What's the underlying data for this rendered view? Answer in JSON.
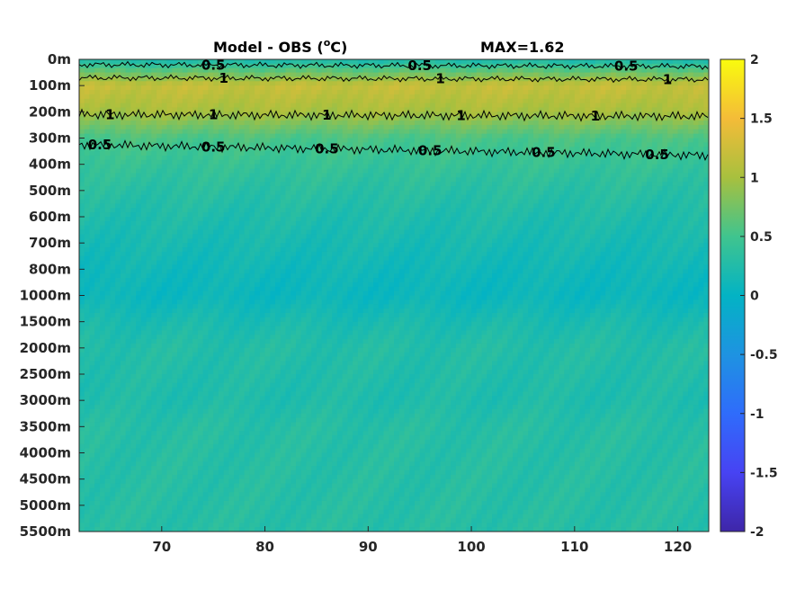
{
  "chart_data": {
    "type": "heatmap",
    "title": "Model - OBS (",
    "title_unit_sup": "o",
    "title_unit": "C)",
    "max_label": "MAX=1.62",
    "xlim": [
      62,
      123
    ],
    "xticks": [
      70,
      80,
      90,
      100,
      110,
      120
    ],
    "depth_labels": [
      "0m",
      "100m",
      "200m",
      "300m",
      "400m",
      "500m",
      "600m",
      "700m",
      "800m",
      "1000m",
      "1500m",
      "2000m",
      "2500m",
      "3000m",
      "3500m",
      "4000m",
      "4500m",
      "5000m",
      "5500m"
    ],
    "colorbar": {
      "clim": [
        -2,
        2
      ],
      "ticks": [
        "2",
        "1.5",
        "1",
        "0.5",
        "0",
        "-0.5",
        "-1",
        "-1.5",
        "-2"
      ],
      "colormap": "parula"
    },
    "profile": [
      {
        "level": "0m",
        "value": 0.2
      },
      {
        "level": "100m",
        "value": 1.2
      },
      {
        "level": "200m",
        "value": 1.0
      },
      {
        "level": "300m",
        "value": 0.55
      },
      {
        "level": "400m",
        "value": 0.42
      },
      {
        "level": "500m",
        "value": 0.32
      },
      {
        "level": "600m",
        "value": 0.24
      },
      {
        "level": "700m",
        "value": 0.18
      },
      {
        "level": "800m",
        "value": 0.12
      },
      {
        "level": "1000m",
        "value": 0.08
      },
      {
        "level": "1500m",
        "value": 0.2
      },
      {
        "level": "2000m",
        "value": 0.28
      },
      {
        "level": "2500m",
        "value": 0.26
      },
      {
        "level": "3000m",
        "value": 0.24
      },
      {
        "level": "3500m",
        "value": 0.3
      },
      {
        "level": "4000m",
        "value": 0.3
      },
      {
        "level": "4500m",
        "value": 0.3
      },
      {
        "level": "5000m",
        "value": 0.3
      },
      {
        "level": "5500m",
        "value": 0.3
      }
    ],
    "contours": [
      {
        "level": 0.5,
        "depth_position": 0.2,
        "labels": [
          {
            "x": 75,
            "text": "0.5"
          },
          {
            "x": 95,
            "text": "0.5"
          },
          {
            "x": 115,
            "text": "0.5"
          }
        ]
      },
      {
        "level": 1,
        "depth_position": 0.7,
        "labels": [
          {
            "x": 76,
            "text": "1"
          },
          {
            "x": 97,
            "text": "1"
          },
          {
            "x": 119,
            "text": "1"
          }
        ]
      },
      {
        "level": 1,
        "depth_position": 2.1,
        "labels": [
          {
            "x": 65,
            "text": "1"
          },
          {
            "x": 75,
            "text": "1"
          },
          {
            "x": 86,
            "text": "1"
          },
          {
            "x": 99,
            "text": "1"
          },
          {
            "x": 112,
            "text": "1"
          }
        ]
      },
      {
        "level": 0.5,
        "depth_position": 3.25,
        "labels": [
          {
            "x": 64,
            "text": "0.5"
          },
          {
            "x": 75,
            "text": "0.5"
          },
          {
            "x": 86,
            "text": "0.5"
          },
          {
            "x": 96,
            "text": "0.5"
          },
          {
            "x": 107,
            "text": "0.5"
          },
          {
            "x": 118,
            "text": "0.5"
          }
        ]
      }
    ]
  }
}
